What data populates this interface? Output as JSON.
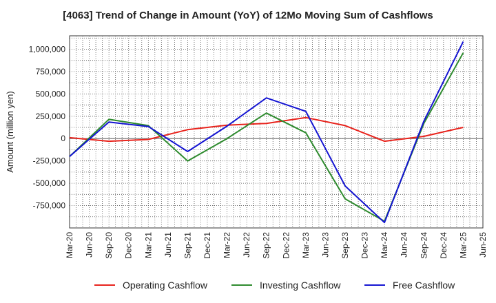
{
  "chart_data": {
    "type": "line",
    "title": "[4063]  Trend of Change in Amount (YoY) of 12Mo Moving Sum of Cashflows",
    "xlabel": "",
    "ylabel": "Amount (million yen)",
    "ylim": [
      -1000000,
      1150000
    ],
    "yticks": [
      -750000,
      -500000,
      -250000,
      0,
      250000,
      500000,
      750000,
      1000000
    ],
    "ytick_labels": [
      "-750,000",
      "-500,000",
      "-250,000",
      "0",
      "250,000",
      "500,000",
      "750,000",
      "1,000,000"
    ],
    "categories": [
      "Mar-20",
      "Jun-20",
      "Sep-20",
      "Dec-20",
      "Mar-21",
      "Jun-21",
      "Sep-21",
      "Dec-21",
      "Mar-22",
      "Jun-22",
      "Sep-22",
      "Dec-22",
      "Mar-23",
      "Jun-23",
      "Sep-23",
      "Dec-23",
      "Mar-24",
      "Jun-24",
      "Sep-24",
      "Dec-24",
      "Mar-25",
      "Jun-25"
    ],
    "grid": true,
    "legend_position": "bottom",
    "series": [
      {
        "name": "Operating Cashflow",
        "color": "#e8231c",
        "values": [
          10000,
          null,
          -30000,
          null,
          -10000,
          null,
          100000,
          null,
          150000,
          null,
          170000,
          null,
          235000,
          null,
          145000,
          null,
          -30000,
          null,
          25000,
          null,
          125000,
          null
        ]
      },
      {
        "name": "Investing Cashflow",
        "color": "#2e8b2e",
        "values": [
          -200000,
          null,
          215000,
          null,
          145000,
          null,
          -250000,
          null,
          0,
          null,
          285000,
          null,
          65000,
          null,
          -675000,
          null,
          -925000,
          null,
          170000,
          null,
          960000,
          null
        ]
      },
      {
        "name": "Free Cashflow",
        "color": "#1414d2",
        "values": [
          -200000,
          null,
          185000,
          null,
          135000,
          null,
          -145000,
          null,
          140000,
          null,
          455000,
          null,
          305000,
          null,
          -530000,
          null,
          -940000,
          null,
          195000,
          null,
          1085000,
          null
        ]
      }
    ]
  }
}
